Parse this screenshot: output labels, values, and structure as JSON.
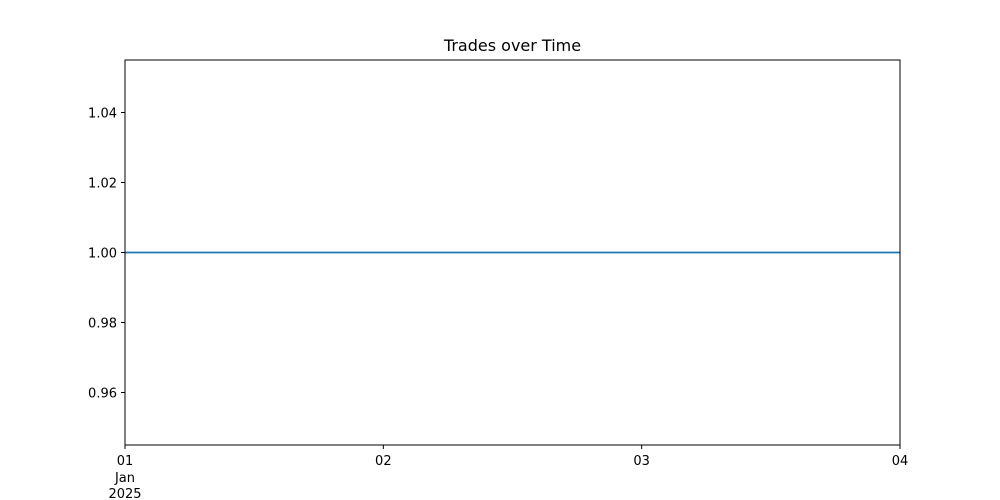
{
  "chart_data": {
    "type": "line",
    "title": "Trades over Time",
    "xlabel": "",
    "ylabel": "",
    "x_ticks": [
      {
        "date": "2025-01-01",
        "label": "01",
        "sub": [
          "Jan",
          "2025"
        ]
      },
      {
        "date": "2025-01-02",
        "label": "02",
        "sub": []
      },
      {
        "date": "2025-01-03",
        "label": "03",
        "sub": []
      },
      {
        "date": "2025-01-04",
        "label": "04",
        "sub": []
      }
    ],
    "y_ticks": [
      "0.96",
      "0.98",
      "1.00",
      "1.02",
      "1.04"
    ],
    "xlim": [
      "2025-01-01",
      "2025-01-04"
    ],
    "ylim": [
      0.945,
      1.055
    ],
    "grid": false,
    "series": [
      {
        "color": "#1f77b4",
        "x": [
          "2025-01-01",
          "2025-01-02",
          "2025-01-03",
          "2025-01-04"
        ],
        "y": [
          1,
          1,
          1,
          1
        ]
      }
    ]
  }
}
